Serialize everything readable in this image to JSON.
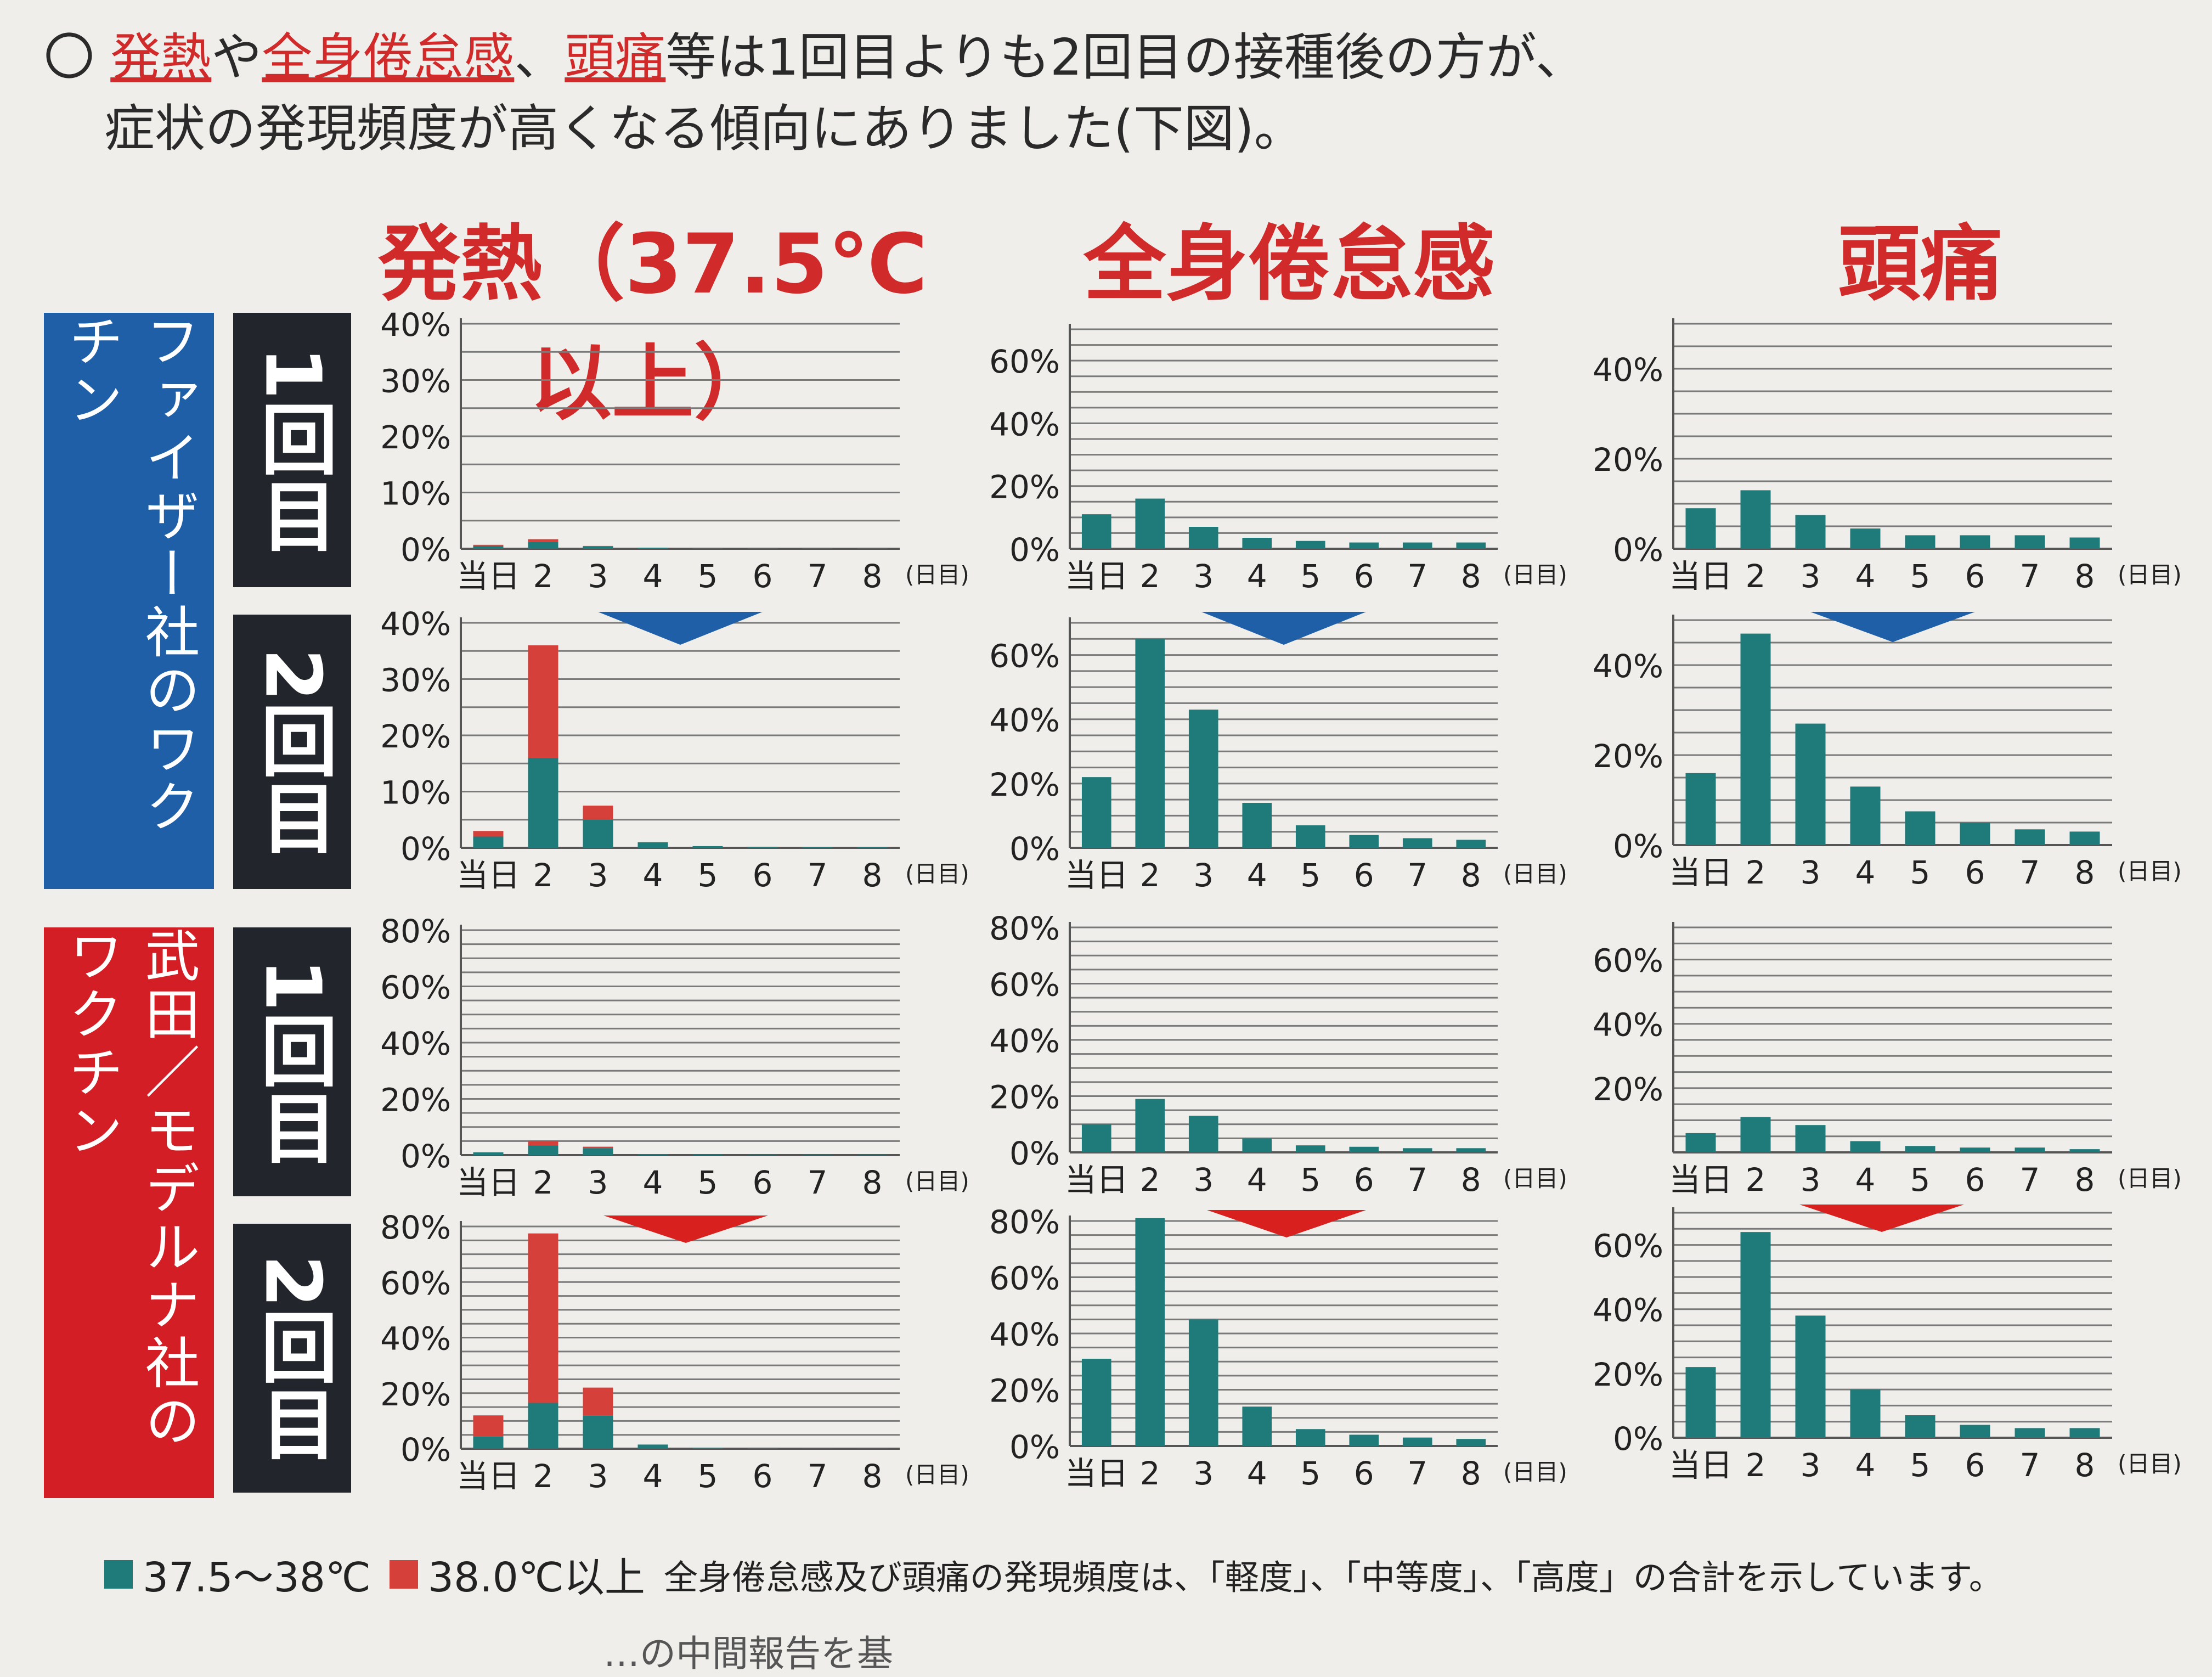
{
  "intro": {
    "bullet": "〇",
    "fever": "発熱",
    "ya": "や",
    "fatigue": "全身倦怠感",
    "comma": "、",
    "headache": "頭痛",
    "rest1": "等は1回目よりも2回目の接種後の方が、",
    "line2": "症状の発現頻度が高くなる傾向にありました(下図)。"
  },
  "columns": {
    "fever_title": "発熱（37.5℃以上）",
    "fatigue_title": "全身倦怠感",
    "headache_title": "頭痛"
  },
  "rows": {
    "pfizer_label": "ファイザー社のワクチン",
    "moderna_label": "武田／モデルナ社のワクチン",
    "dose1": "1回目",
    "dose2": "2回目"
  },
  "colors": {
    "teal": "#1f7a7a",
    "red": "#d6403a",
    "blue_arrow": "#1f5fa8",
    "red_arrow": "#d8201f"
  },
  "legend": {
    "teal_label": "37.5～38℃",
    "red_label": "38.0℃以上",
    "note": "全身倦怠感及び頭痛の発現頻度は、「軽度」、「中等度」、「高度」の合計を示しています。"
  },
  "footer": {
    "partial_text": "…の中間報告を基"
  },
  "chart_data": [
    {
      "id": "pfizer-fever-1",
      "type": "bar",
      "stacked": true,
      "title": "発熱（37.5℃以上）",
      "subtitle": "ファイザー社 1回目",
      "categories": [
        "当日",
        "2",
        "3",
        "4",
        "5",
        "6",
        "7",
        "8"
      ],
      "xunit": "(日目)",
      "ylim": [
        0,
        40
      ],
      "yticks": [
        "0%",
        "10%",
        "20%",
        "30%",
        "40%"
      ],
      "series": [
        {
          "name": "37.5～38℃",
          "values": [
            0.5,
            1.2,
            0.4,
            0.2,
            0.1,
            0.1,
            0.1,
            0.1
          ]
        },
        {
          "name": "38.0℃以上",
          "values": [
            0.2,
            0.5,
            0.1,
            0.0,
            0.0,
            0.0,
            0.0,
            0.0
          ]
        }
      ]
    },
    {
      "id": "pfizer-fatigue-1",
      "type": "bar",
      "title": "全身倦怠感",
      "subtitle": "ファイザー社 1回目",
      "categories": [
        "当日",
        "2",
        "3",
        "4",
        "5",
        "6",
        "7",
        "8"
      ],
      "xunit": "(日目)",
      "ylim": [
        0,
        70
      ],
      "yticks": [
        "0%",
        "20%",
        "40%",
        "60%"
      ],
      "series": [
        {
          "name": "全身倦怠感",
          "values": [
            11,
            16,
            7,
            3.5,
            2.5,
            2,
            2,
            2
          ]
        }
      ]
    },
    {
      "id": "pfizer-headache-1",
      "type": "bar",
      "title": "頭痛",
      "subtitle": "ファイザー社 1回目",
      "categories": [
        "当日",
        "2",
        "3",
        "4",
        "5",
        "6",
        "7",
        "8"
      ],
      "xunit": "(日目)",
      "ylim": [
        0,
        50
      ],
      "yticks": [
        "0%",
        "20%",
        "40%"
      ],
      "series": [
        {
          "name": "頭痛",
          "values": [
            9,
            13,
            7.5,
            4.5,
            3,
            3,
            3,
            2.5
          ]
        }
      ]
    },
    {
      "id": "pfizer-fever-2",
      "type": "bar",
      "stacked": true,
      "title": "発熱（37.5℃以上）",
      "subtitle": "ファイザー社 2回目",
      "categories": [
        "当日",
        "2",
        "3",
        "4",
        "5",
        "6",
        "7",
        "8"
      ],
      "xunit": "(日目)",
      "ylim": [
        0,
        40
      ],
      "yticks": [
        "0%",
        "10%",
        "20%",
        "30%",
        "40%"
      ],
      "series": [
        {
          "name": "37.5～38℃",
          "values": [
            2.0,
            16.0,
            5.0,
            1.0,
            0.3,
            0.2,
            0.1,
            0.1
          ]
        },
        {
          "name": "38.0℃以上",
          "values": [
            1.0,
            20.0,
            2.5,
            0.0,
            0.0,
            0.0,
            0.0,
            0.0
          ]
        }
      ]
    },
    {
      "id": "pfizer-fatigue-2",
      "type": "bar",
      "title": "全身倦怠感",
      "subtitle": "ファイザー社 2回目",
      "categories": [
        "当日",
        "2",
        "3",
        "4",
        "5",
        "6",
        "7",
        "8"
      ],
      "xunit": "(日目)",
      "ylim": [
        0,
        70
      ],
      "yticks": [
        "0%",
        "20%",
        "40%",
        "60%"
      ],
      "series": [
        {
          "name": "全身倦怠感",
          "values": [
            22,
            65,
            43,
            14,
            7,
            4,
            3,
            2.5
          ]
        }
      ]
    },
    {
      "id": "pfizer-headache-2",
      "type": "bar",
      "title": "頭痛",
      "subtitle": "ファイザー社 2回目",
      "categories": [
        "当日",
        "2",
        "3",
        "4",
        "5",
        "6",
        "7",
        "8"
      ],
      "xunit": "(日目)",
      "ylim": [
        0,
        50
      ],
      "yticks": [
        "0%",
        "20%",
        "40%"
      ],
      "series": [
        {
          "name": "頭痛",
          "values": [
            16,
            47,
            27,
            13,
            7.5,
            5,
            3.5,
            3
          ]
        }
      ]
    },
    {
      "id": "moderna-fever-1",
      "type": "bar",
      "stacked": true,
      "title": "発熱（37.5℃以上）",
      "subtitle": "武田／モデルナ社 1回目",
      "categories": [
        "当日",
        "2",
        "3",
        "4",
        "5",
        "6",
        "7",
        "8"
      ],
      "xunit": "(日目)",
      "ylim": [
        0,
        80
      ],
      "yticks": [
        "0%",
        "20%",
        "40%",
        "60%",
        "80%"
      ],
      "series": [
        {
          "name": "37.5～38℃",
          "values": [
            1.0,
            3.5,
            2.5,
            0.3,
            0.2,
            0.1,
            0.1,
            0.1
          ]
        },
        {
          "name": "38.0℃以上",
          "values": [
            0.0,
            1.5,
            0.5,
            0.0,
            0.0,
            0.0,
            0.0,
            0.0
          ]
        }
      ]
    },
    {
      "id": "moderna-fatigue-1",
      "type": "bar",
      "title": "全身倦怠感",
      "subtitle": "武田／モデルナ社 1回目",
      "categories": [
        "当日",
        "2",
        "3",
        "4",
        "5",
        "6",
        "7",
        "8"
      ],
      "xunit": "(日目)",
      "ylim": [
        0,
        80
      ],
      "yticks": [
        "0%",
        "20%",
        "40%",
        "60%",
        "80%"
      ],
      "series": [
        {
          "name": "全身倦怠感",
          "values": [
            10,
            19,
            13,
            5,
            2.5,
            2,
            1.5,
            1.5
          ]
        }
      ]
    },
    {
      "id": "moderna-headache-1",
      "type": "bar",
      "title": "頭痛",
      "subtitle": "武田／モデルナ社 1回目",
      "categories": [
        "当日",
        "2",
        "3",
        "4",
        "5",
        "6",
        "7",
        "8"
      ],
      "xunit": "(日目)",
      "ylim": [
        0,
        70
      ],
      "yticks": [
        "20%",
        "40%",
        "60%"
      ],
      "series": [
        {
          "name": "頭痛",
          "values": [
            6,
            11,
            8.5,
            3.5,
            2,
            1.5,
            1.5,
            1
          ]
        }
      ]
    },
    {
      "id": "moderna-fever-2",
      "type": "bar",
      "stacked": true,
      "title": "発熱（37.5℃以上）",
      "subtitle": "武田／モデルナ社 2回目",
      "categories": [
        "当日",
        "2",
        "3",
        "4",
        "5",
        "6",
        "7",
        "8"
      ],
      "xunit": "(日目)",
      "ylim": [
        0,
        80
      ],
      "yticks": [
        "0%",
        "20%",
        "40%",
        "60%",
        "80%"
      ],
      "series": [
        {
          "name": "37.5～38℃",
          "values": [
            4.5,
            16.5,
            12.0,
            1.5,
            0.3,
            0.2,
            0.1,
            0.1
          ]
        },
        {
          "name": "38.0℃以上",
          "values": [
            7.5,
            61.0,
            10.0,
            0.0,
            0.0,
            0.0,
            0.0,
            0.0
          ]
        }
      ]
    },
    {
      "id": "moderna-fatigue-2",
      "type": "bar",
      "title": "全身倦怠感",
      "subtitle": "武田／モデルナ社 2回目",
      "categories": [
        "当日",
        "2",
        "3",
        "4",
        "5",
        "6",
        "7",
        "8"
      ],
      "xunit": "(日目)",
      "ylim": [
        0,
        80
      ],
      "yticks": [
        "0%",
        "20%",
        "40%",
        "60%",
        "80%"
      ],
      "series": [
        {
          "name": "全身倦怠感",
          "values": [
            31,
            81,
            45,
            14,
            6,
            4,
            3,
            2.5
          ]
        }
      ]
    },
    {
      "id": "moderna-headache-2",
      "type": "bar",
      "title": "頭痛",
      "subtitle": "武田／モデルナ社 2回目",
      "categories": [
        "当日",
        "2",
        "3",
        "4",
        "5",
        "6",
        "7",
        "8"
      ],
      "xunit": "(日目)",
      "ylim": [
        0,
        70
      ],
      "yticks": [
        "0%",
        "20%",
        "40%",
        "60%"
      ],
      "series": [
        {
          "name": "頭痛",
          "values": [
            22,
            64,
            38,
            15,
            7,
            4,
            3,
            3
          ]
        }
      ]
    }
  ]
}
